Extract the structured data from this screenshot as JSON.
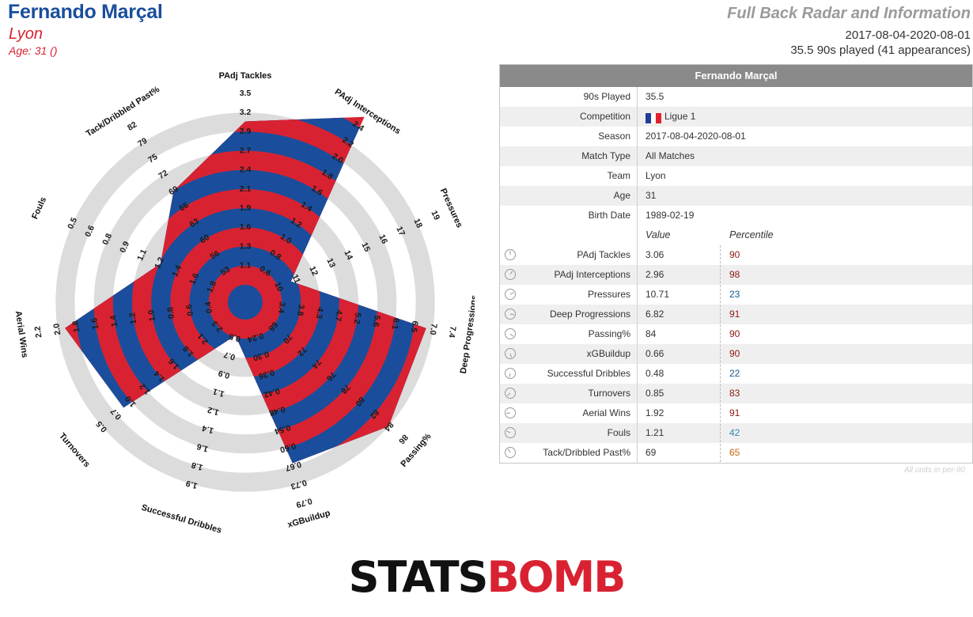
{
  "header": {
    "player_name": "Fernando Marçal",
    "team": "Lyon",
    "age_line": "Age: 31 ()",
    "title": "Full Back Radar and Information",
    "date_range": "2017-08-04-2020-08-01",
    "played_line": "35.5 90s played (41 appearances)"
  },
  "colors": {
    "red": "#d92231",
    "blue": "#1a4e9c",
    "ring": "#dcdcdc",
    "accent_title": "#9a9a9a"
  },
  "chart_data": {
    "type": "radar",
    "title": "Full Back Radar and Information",
    "metrics": [
      {
        "name": "PAdj Tackles",
        "value": 3.06,
        "ticks": [
          "1.1",
          "1.3",
          "1.6",
          "1.9",
          "2.1",
          "2.4",
          "2.7",
          "2.9",
          "3.2",
          "3.5"
        ]
      },
      {
        "name": "PAdj Interceptions",
        "value": 2.96,
        "ticks": [
          "0.6",
          "0.8",
          "1.0",
          "1.2",
          "1.4",
          "1.6",
          "1.8",
          "2.0",
          "2.2",
          "2.4"
        ]
      },
      {
        "name": "Pressures",
        "value": 10.71,
        "ticks": [
          "10",
          "11",
          "12",
          "13",
          "14",
          "15",
          "16",
          "17",
          "18",
          "19"
        ]
      },
      {
        "name": "Deep Progressions",
        "value": 6.82,
        "ticks": [
          "3.4",
          "3.8",
          "4.3",
          "4.7",
          "5.2",
          "5.6",
          "6.1",
          "6.5",
          "7.0",
          "7.4"
        ]
      },
      {
        "name": "Passing%",
        "value": 84,
        "ticks": [
          "68",
          "70",
          "72",
          "74",
          "76",
          "78",
          "80",
          "82",
          "84",
          "86"
        ]
      },
      {
        "name": "xGBuildup",
        "value": 0.66,
        "ticks": [
          "0.24",
          "0.30",
          "0.36",
          "0.42",
          "0.48",
          "0.54",
          "0.60",
          "0.67",
          "0.73",
          "0.79"
        ]
      },
      {
        "name": "Successful Dribbles",
        "value": 0.48,
        "ticks": [
          "0.5",
          "0.7",
          "0.9",
          "1.1",
          "1.2",
          "1.4",
          "1.6",
          "1.8",
          "1.9"
        ]
      },
      {
        "name": "Turnovers",
        "value": 0.85,
        "ticks": [
          "2.3",
          "2.1",
          "1.8",
          "1.6",
          "1.4",
          "1.2",
          "1.0",
          "0.7",
          "0.5"
        ]
      },
      {
        "name": "Aerial Wins",
        "value": 1.92,
        "ticks": [
          "0.4",
          "0.6",
          "0.8",
          "1.0",
          "1.2",
          "1.4",
          "1.6",
          "1.8",
          "2.0",
          "2.2"
        ]
      },
      {
        "name": "Fouls",
        "value": 1.21,
        "ticks": [
          "1.8",
          "1.6",
          "1.4",
          "1.2",
          "1.1",
          "0.9",
          "0.8",
          "0.6",
          "0.5"
        ]
      },
      {
        "name": "Tack/Dribbled Past%",
        "value": 69,
        "ticks": [
          "53",
          "56",
          "60",
          "63",
          "66",
          "69",
          "72",
          "75",
          "79",
          "82"
        ]
      }
    ]
  },
  "table": {
    "title": "Fernando Marçal",
    "info_rows": [
      {
        "label": "90s Played",
        "value": "35.5"
      },
      {
        "label": "Competition",
        "value": "Ligue 1",
        "flag": "france"
      },
      {
        "label": "Season",
        "value": "2017-08-04-2020-08-01"
      },
      {
        "label": "Match Type",
        "value": "All Matches"
      },
      {
        "label": "Team",
        "value": "Lyon"
      },
      {
        "label": "Age",
        "value": "31"
      },
      {
        "label": "Birth Date",
        "value": "1989-02-19"
      }
    ],
    "col_value": "Value",
    "col_percentile": "Percentile",
    "metric_rows": [
      {
        "label": "PAdj Tackles",
        "value": "3.06",
        "percentile": "90",
        "color": "#8b1a10",
        "icon": "clock-icon"
      },
      {
        "label": "PAdj Interceptions",
        "value": "2.96",
        "percentile": "98",
        "color": "#8b1a10",
        "icon": "clock-icon"
      },
      {
        "label": "Pressures",
        "value": "10.71",
        "percentile": "23",
        "color": "#1a5a8a",
        "icon": "clock-icon"
      },
      {
        "label": "Deep Progressions",
        "value": "6.82",
        "percentile": "91",
        "color": "#8b1a10",
        "icon": "clock-icon"
      },
      {
        "label": "Passing%",
        "value": "84",
        "percentile": "90",
        "color": "#8b1a10",
        "icon": "clock-icon"
      },
      {
        "label": "xGBuildup",
        "value": "0.66",
        "percentile": "90",
        "color": "#8b1a10",
        "icon": "clock-icon"
      },
      {
        "label": "Successful Dribbles",
        "value": "0.48",
        "percentile": "22",
        "color": "#1a5a8a",
        "icon": "clock-icon"
      },
      {
        "label": "Turnovers",
        "value": "0.85",
        "percentile": "83",
        "color": "#8b1a10",
        "icon": "clock-icon"
      },
      {
        "label": "Aerial Wins",
        "value": "1.92",
        "percentile": "91",
        "color": "#8b1a10",
        "icon": "clock-icon"
      },
      {
        "label": "Fouls",
        "value": "1.21",
        "percentile": "42",
        "color": "#2a8ab0",
        "icon": "clock-icon"
      },
      {
        "label": "Tack/Dribbled Past%",
        "value": "69",
        "percentile": "65",
        "color": "#c06a10",
        "icon": "clock-icon"
      }
    ],
    "units_note": "All units in per-90"
  },
  "logo": {
    "part1": "STATS",
    "part2": "BOMB"
  }
}
